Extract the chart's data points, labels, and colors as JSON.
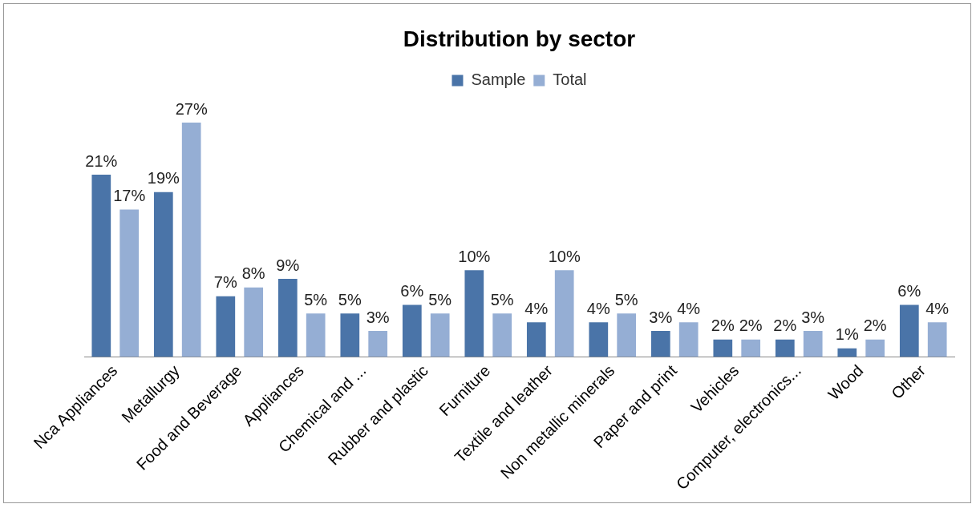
{
  "chart_data": {
    "type": "bar",
    "title": "Distribution by sector",
    "categories": [
      "Nca Appliances",
      "Metallurgy",
      "Food and Beverage",
      "Appliances",
      "Chemical and ...",
      "Rubber and plastic",
      "Furniture",
      "Textile and leather",
      "Non metallic minerals",
      "Paper and print",
      "Vehicles",
      "Computer, electronics...",
      "Wood",
      "Other"
    ],
    "series": [
      {
        "name": "Sample",
        "color": "#4a74a8",
        "values": [
          21,
          19,
          7,
          9,
          5,
          6,
          10,
          4,
          4,
          3,
          2,
          2,
          1,
          6
        ],
        "value_labels": [
          "21%",
          "19%",
          "7%",
          "9%",
          "5%",
          "6%",
          "10%",
          "4%",
          "4%",
          "3%",
          "2%",
          "2%",
          "1%",
          "6%"
        ]
      },
      {
        "name": "Total",
        "color": "#95aed4",
        "values": [
          17,
          27,
          8,
          5,
          3,
          5,
          5,
          10,
          5,
          4,
          2,
          3,
          2,
          4
        ],
        "value_labels": [
          "17%",
          "27%",
          "8%",
          "5%",
          "3%",
          "5%",
          "5%",
          "10%",
          "5%",
          "4%",
          "2%",
          "3%",
          "2%",
          "4%"
        ]
      }
    ],
    "legend": "top",
    "grid": false
  }
}
